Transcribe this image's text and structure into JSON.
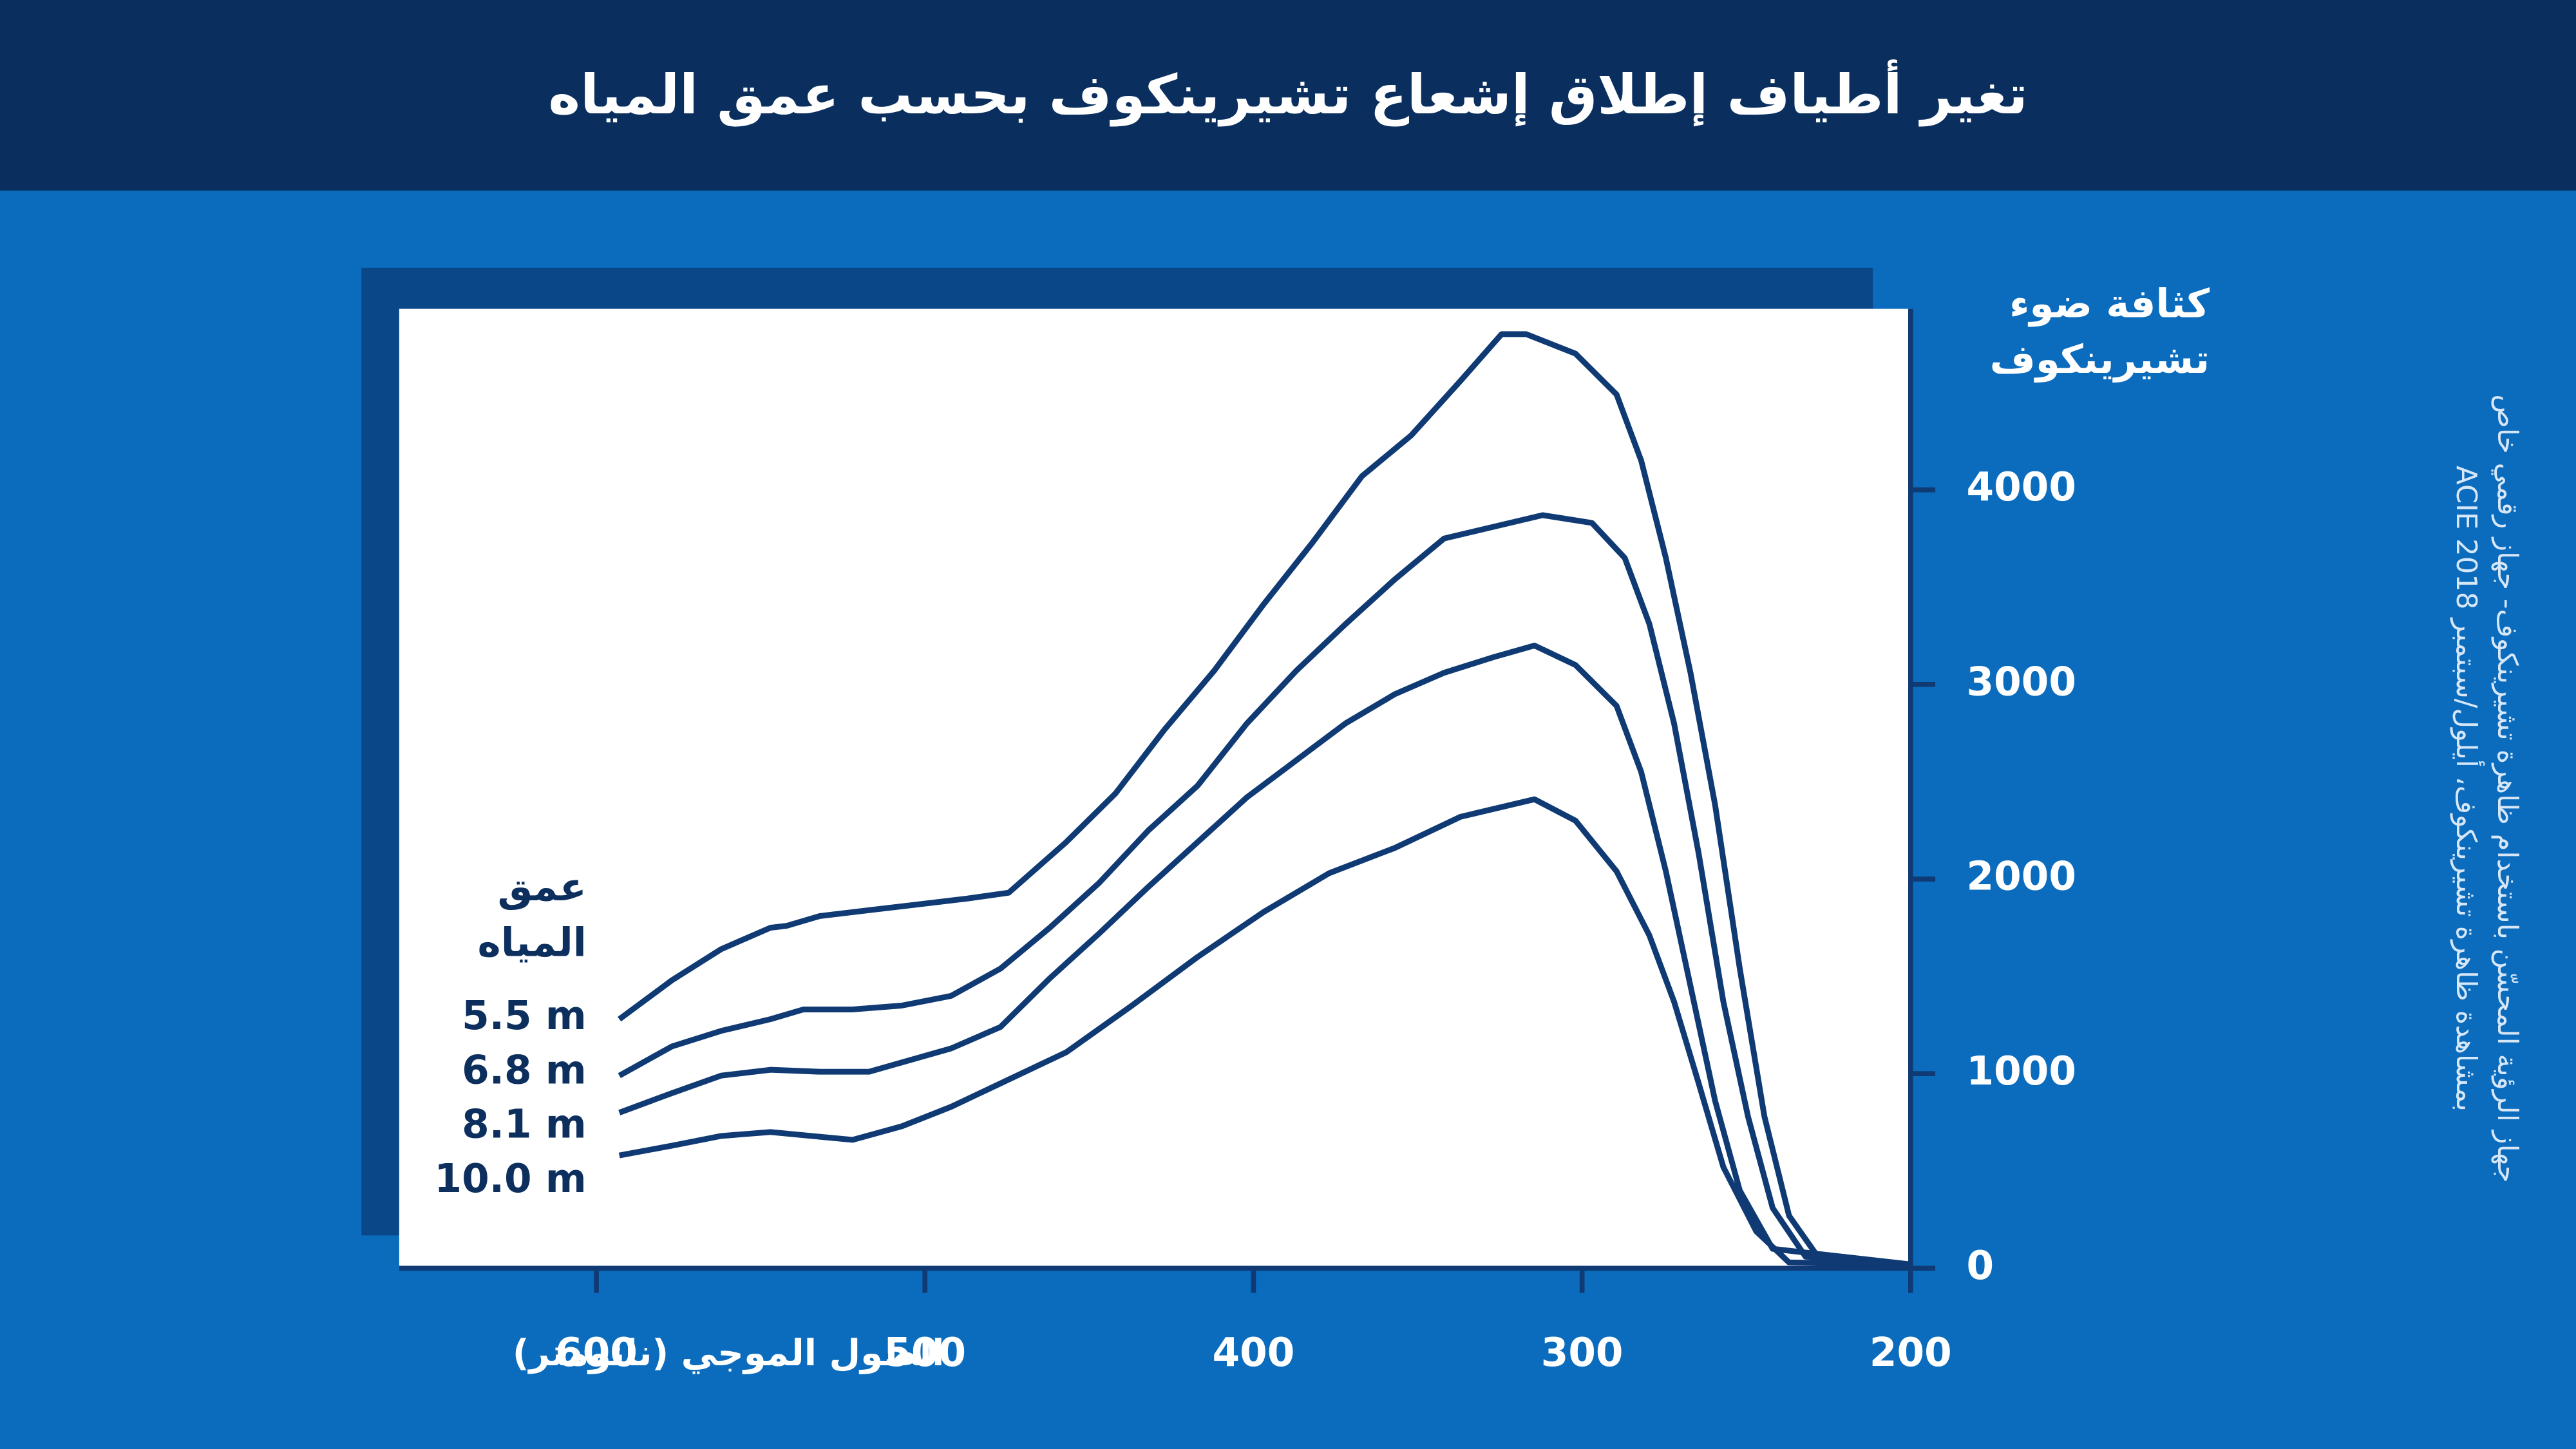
{
  "chart_data": {
    "type": "line",
    "title": "تغير أطياف إطلاق إشعاع تشيرينكوف بحسب عمق المياه",
    "x_label": "الطول الموجي (نانومتر)",
    "y_label": "كثافة ضوء تشيرينكوف",
    "legend_title": "عمق المياه",
    "xlim": [
      660,
      200
    ],
    "ylim": [
      0,
      4930
    ],
    "xticks": [
      600,
      500,
      400,
      300,
      200
    ],
    "yticks": [
      0,
      1000,
      2000,
      3000,
      4000
    ],
    "series": [
      {
        "name": "5.5 m",
        "color": "#0f3a73",
        "x": [
          593,
          577,
          562,
          547,
          542,
          532,
          517,
          502,
          487,
          474.5,
          457,
          442,
          427,
          412,
          397,
          382,
          367,
          352,
          337,
          324.5,
          317,
          302,
          289.5,
          282,
          274.5,
          267,
          259.5,
          252,
          244.5,
          237,
          227,
          200
        ],
        "values": [
          1280,
          1480,
          1640,
          1750,
          1760,
          1810,
          1840,
          1870,
          1900,
          1930,
          2190,
          2440,
          2770,
          3070,
          3410,
          3730,
          4070,
          4280,
          4560,
          4800,
          4800,
          4700,
          4490,
          4150,
          3650,
          3060,
          2380,
          1540,
          780,
          270,
          30,
          20
        ]
      },
      {
        "name": "6.8 m",
        "color": "#0f3a73",
        "x": [
          593,
          577,
          562,
          547,
          537,
          522,
          507,
          492,
          477,
          462,
          447,
          432,
          417,
          402,
          387,
          372,
          357,
          342,
          327,
          312,
          297,
          287,
          279.5,
          272,
          264.5,
          257,
          249.5,
          242,
          232,
          200
        ],
        "values": [
          990,
          1140,
          1220,
          1280,
          1330,
          1330,
          1350,
          1400,
          1540,
          1750,
          1980,
          2250,
          2480,
          2800,
          3070,
          3310,
          3540,
          3750,
          3810,
          3870,
          3830,
          3650,
          3310,
          2800,
          2130,
          1370,
          780,
          310,
          60,
          20
        ]
      },
      {
        "name": "8.1 m",
        "color": "#0f3a73",
        "x": [
          593,
          577,
          562,
          547,
          532,
          517,
          504.5,
          492,
          477,
          462,
          447,
          432,
          417,
          402,
          387,
          372,
          357,
          342,
          327,
          314.5,
          302,
          289.5,
          282,
          274.5,
          267,
          259.5,
          252,
          242,
          200
        ],
        "values": [
          800,
          900,
          990,
          1020,
          1010,
          1010,
          1070,
          1130,
          1240,
          1490,
          1720,
          1960,
          2190,
          2420,
          2610,
          2800,
          2950,
          3060,
          3140,
          3200,
          3100,
          2890,
          2550,
          2040,
          1450,
          860,
          400,
          100,
          20
        ]
      },
      {
        "name": "10.0 m",
        "color": "#0f3a73",
        "x": [
          593,
          577,
          562,
          547,
          534.5,
          522,
          507,
          492,
          477,
          457,
          437,
          417,
          397,
          377,
          357,
          337,
          314.5,
          302,
          289.5,
          279.5,
          272,
          264.5,
          257,
          247,
          237,
          200
        ],
        "values": [
          580,
          630,
          680,
          700,
          680,
          660,
          730,
          830,
          950,
          1110,
          1350,
          1600,
          1830,
          2030,
          2160,
          2320,
          2410,
          2300,
          2040,
          1710,
          1370,
          950,
          520,
          190,
          30,
          20
        ]
      }
    ],
    "source": [
      "جهاز الرؤية المحسّن باستخدام ظاهرة تشيرينكوف- جهاز رقمي خاص",
      "بمشاهدة ظاهرة تشيرينكوف، أيلول/سبتمبر 2018 ACIE"
    ]
  }
}
